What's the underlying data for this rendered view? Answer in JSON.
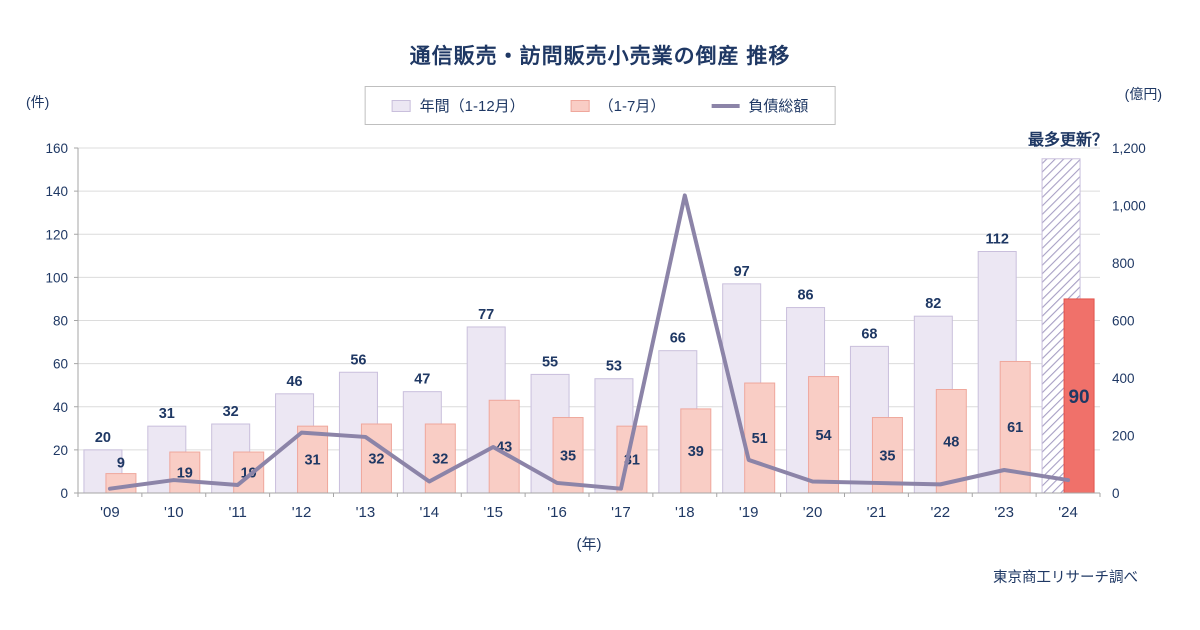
{
  "title": "通信販売・訪問販売小売業の倒産 推移",
  "legend": {
    "annual": "年間（1-12月）",
    "ytd": "（1-7月）",
    "debt": "負債総額"
  },
  "axis_units": {
    "left": "(件)",
    "right": "(億円)"
  },
  "x_axis_caption": "(年)",
  "annotation": "最多更新？",
  "source": "東京商工リサーチ調べ",
  "colors": {
    "navy": "#1F3864",
    "annual_fill": "#ECE7F3",
    "annual_border": "#C9BFDC",
    "ytd_fill": "#F9CDC5",
    "ytd_border": "#EFA79C",
    "ytd_2024_fill": "#F0716A",
    "ytd_2024_border": "#E2554D",
    "line": "#8C84A8",
    "grid": "#DCDCDC",
    "axis": "#A6A6A6",
    "hatch": "#A79FC4"
  },
  "chart_data": {
    "type": "bar+line combo",
    "categories": [
      "'09",
      "'10",
      "'11",
      "'12",
      "'13",
      "'14",
      "'15",
      "'16",
      "'17",
      "'18",
      "'19",
      "'20",
      "'21",
      "'22",
      "'23",
      "'24"
    ],
    "series": [
      {
        "name": "年間（1-12月）",
        "type": "bar",
        "axis": "left",
        "values": [
          20,
          31,
          32,
          46,
          56,
          47,
          77,
          55,
          53,
          66,
          97,
          86,
          68,
          82,
          112,
          null
        ],
        "projection_2024": 155,
        "projection_style": "hatched, unlabeled, annotated 最多更新？"
      },
      {
        "name": "（1-7月）",
        "type": "bar",
        "axis": "left",
        "values": [
          9,
          19,
          19,
          31,
          32,
          32,
          43,
          35,
          31,
          39,
          51,
          54,
          35,
          48,
          61,
          90
        ],
        "highlight_last": true
      },
      {
        "name": "負債総額",
        "type": "line",
        "axis": "right",
        "values": [
          15,
          45,
          28,
          210,
          195,
          40,
          160,
          35,
          15,
          1035,
          115,
          40,
          35,
          30,
          80,
          45
        ]
      }
    ],
    "left_axis": {
      "min": 0,
      "max": 160,
      "step": 20,
      "unit": "件"
    },
    "right_axis": {
      "min": 0,
      "max": 1200,
      "step": 200,
      "unit": "億円"
    },
    "grid": "horizontal",
    "legend_position": "top-center"
  }
}
